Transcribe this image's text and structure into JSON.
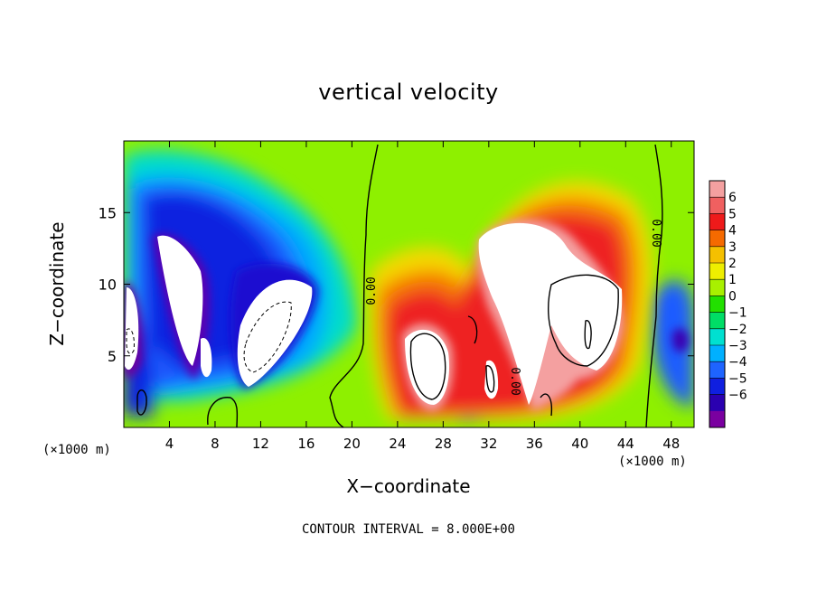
{
  "chart_data": {
    "type": "heatmap",
    "title": "vertical velocity",
    "xlabel": "X−coordinate",
    "ylabel": "Z−coordinate",
    "x_unit": "(×1000 m)",
    "y_unit": "(×1000 m)",
    "xlim": [
      0,
      50
    ],
    "ylim": [
      0,
      20
    ],
    "x_ticks": [
      4,
      8,
      12,
      16,
      20,
      24,
      28,
      32,
      36,
      40,
      44,
      48
    ],
    "y_ticks": [
      5,
      10,
      15
    ],
    "colorbar": {
      "levels": [
        6,
        5,
        4,
        3,
        2,
        1,
        0,
        -1,
        -2,
        -3,
        -4,
        -5,
        -6
      ],
      "tick_labels": [
        "6",
        "5",
        "4",
        "3",
        "2",
        "1",
        "0",
        "−1",
        "−2",
        "−3",
        "−4",
        "−5",
        "−6"
      ],
      "colors": [
        "#f4a0a0",
        "#f06060",
        "#ee1a1a",
        "#f56a00",
        "#f5c000",
        "#eeee00",
        "#a8f000",
        "#22e000",
        "#00dd66",
        "#00e0d0",
        "#00b0ff",
        "#1e64ff",
        "#0f1fe0",
        "#2a00b0",
        "#7a00a0"
      ]
    },
    "contour_labels": [
      "0.00",
      "0.00",
      "0.00"
    ],
    "contour_interval_label": "CONTOUR INTERVAL = 8.000E+00"
  }
}
